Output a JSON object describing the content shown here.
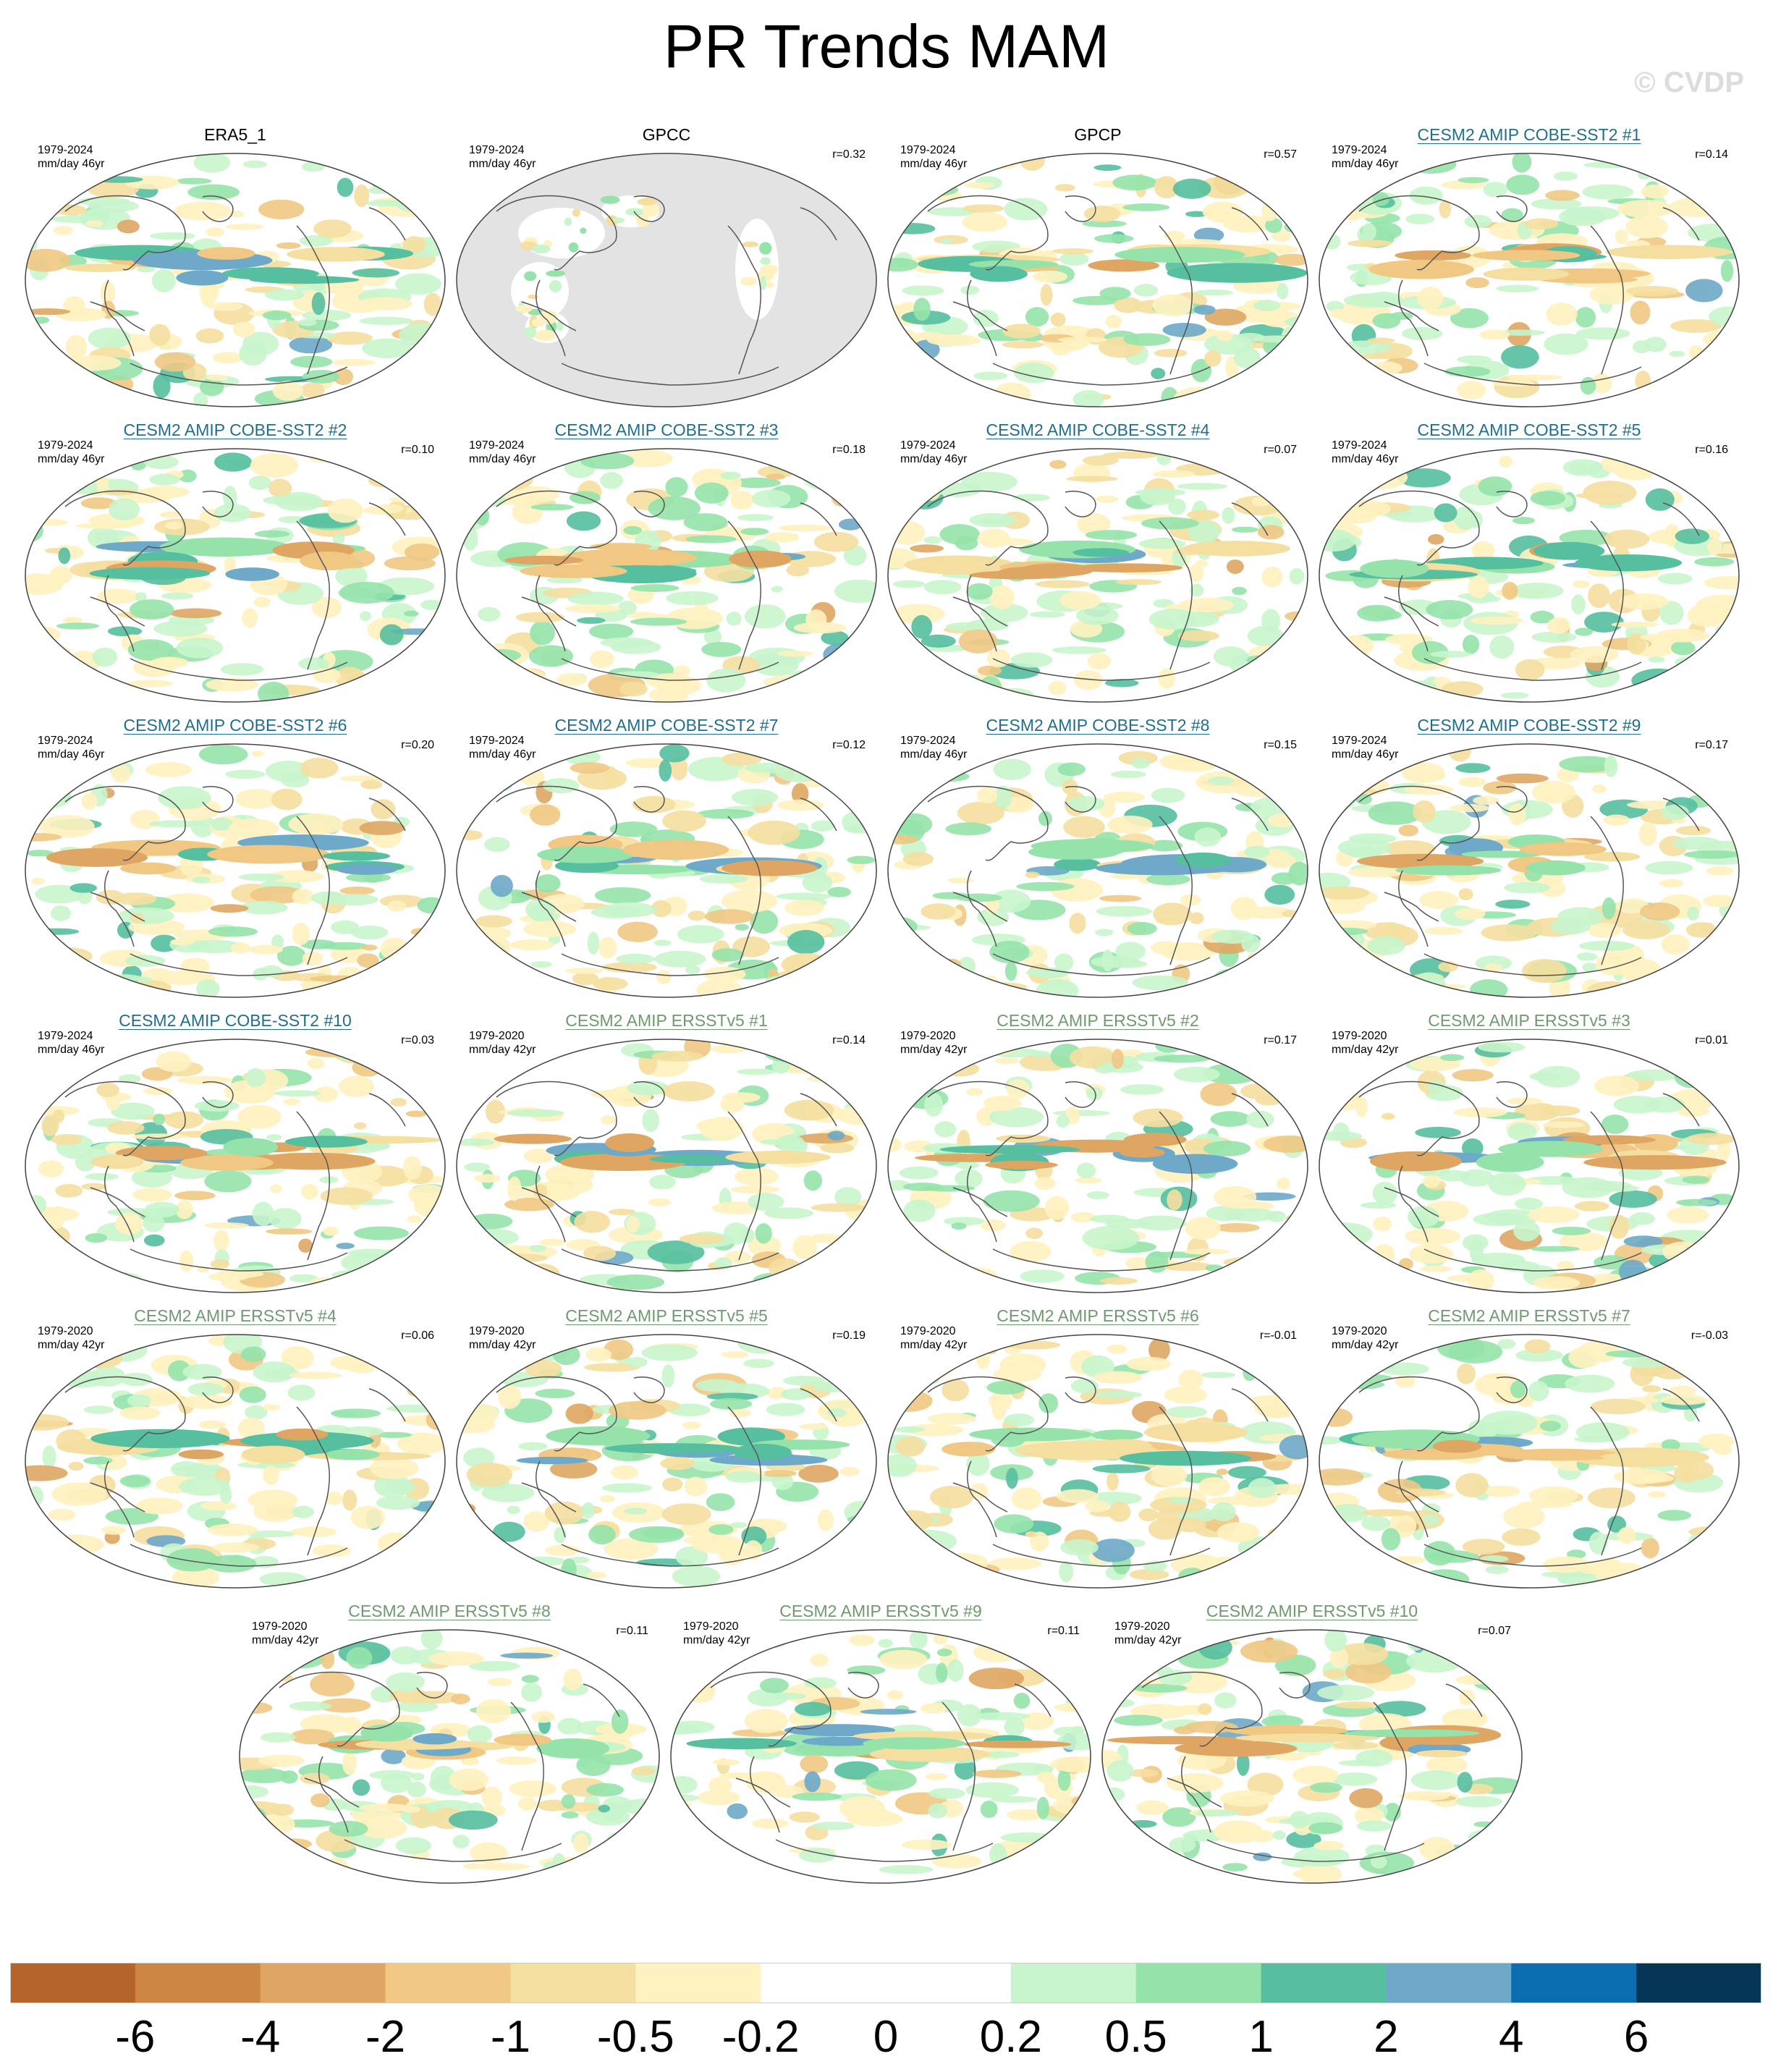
{
  "title": "PR Trends MAM",
  "watermark": "© CVDP",
  "colors": {
    "land_masked": "#e3e3e3",
    "coast": "#555555",
    "title_cobe": "#1f6e8f",
    "title_ersst": "#6f9a6f"
  },
  "panels": [
    {
      "label": "ERA5_1",
      "period": "1979-2024",
      "units": "mm/day 46yr",
      "r": "",
      "group": "obs"
    },
    {
      "label": "GPCC",
      "period": "1979-2024",
      "units": "mm/day 46yr",
      "r": "r=0.32",
      "group": "obs"
    },
    {
      "label": "GPCP",
      "period": "1979-2024",
      "units": "mm/day 46yr",
      "r": "r=0.57",
      "group": "obs"
    },
    {
      "label": "CESM2 AMIP COBE-SST2 #1",
      "period": "1979-2024",
      "units": "mm/day 46yr",
      "r": "r=0.14",
      "group": "cobe"
    },
    {
      "label": "CESM2 AMIP COBE-SST2 #2",
      "period": "1979-2024",
      "units": "mm/day 46yr",
      "r": "r=0.10",
      "group": "cobe"
    },
    {
      "label": "CESM2 AMIP COBE-SST2 #3",
      "period": "1979-2024",
      "units": "mm/day 46yr",
      "r": "r=0.18",
      "group": "cobe"
    },
    {
      "label": "CESM2 AMIP COBE-SST2 #4",
      "period": "1979-2024",
      "units": "mm/day 46yr",
      "r": "r=0.07",
      "group": "cobe"
    },
    {
      "label": "CESM2 AMIP COBE-SST2 #5",
      "period": "1979-2024",
      "units": "mm/day 46yr",
      "r": "r=0.16",
      "group": "cobe"
    },
    {
      "label": "CESM2 AMIP COBE-SST2 #6",
      "period": "1979-2024",
      "units": "mm/day 46yr",
      "r": "r=0.20",
      "group": "cobe"
    },
    {
      "label": "CESM2 AMIP COBE-SST2 #7",
      "period": "1979-2024",
      "units": "mm/day 46yr",
      "r": "r=0.12",
      "group": "cobe"
    },
    {
      "label": "CESM2 AMIP COBE-SST2 #8",
      "period": "1979-2024",
      "units": "mm/day 46yr",
      "r": "r=0.15",
      "group": "cobe"
    },
    {
      "label": "CESM2 AMIP COBE-SST2 #9",
      "period": "1979-2024",
      "units": "mm/day 46yr",
      "r": "r=0.17",
      "group": "cobe"
    },
    {
      "label": "CESM2 AMIP COBE-SST2 #10",
      "period": "1979-2024",
      "units": "mm/day 46yr",
      "r": "r=0.03",
      "group": "cobe"
    },
    {
      "label": "CESM2 AMIP ERSSTv5 #1",
      "period": "1979-2020",
      "units": "mm/day 42yr",
      "r": "r=0.14",
      "group": "ersst"
    },
    {
      "label": "CESM2 AMIP ERSSTv5 #2",
      "period": "1979-2020",
      "units": "mm/day 42yr",
      "r": "r=0.17",
      "group": "ersst"
    },
    {
      "label": "CESM2 AMIP ERSSTv5 #3",
      "period": "1979-2020",
      "units": "mm/day 42yr",
      "r": "r=0.01",
      "group": "ersst"
    },
    {
      "label": "CESM2 AMIP ERSSTv5 #4",
      "period": "1979-2020",
      "units": "mm/day 42yr",
      "r": "r=0.06",
      "group": "ersst"
    },
    {
      "label": "CESM2 AMIP ERSSTv5 #5",
      "period": "1979-2020",
      "units": "mm/day 42yr",
      "r": "r=0.19",
      "group": "ersst"
    },
    {
      "label": "CESM2 AMIP ERSSTv5 #6",
      "period": "1979-2020",
      "units": "mm/day 42yr",
      "r": "r=-0.01",
      "group": "ersst"
    },
    {
      "label": "CESM2 AMIP ERSSTv5 #7",
      "period": "1979-2020",
      "units": "mm/day 42yr",
      "r": "r=-0.03",
      "group": "ersst"
    },
    {
      "label": "CESM2 AMIP ERSSTv5 #8",
      "period": "1979-2020",
      "units": "mm/day 42yr",
      "r": "r=0.11",
      "group": "ersst"
    },
    {
      "label": "CESM2 AMIP ERSSTv5 #9",
      "period": "1979-2020",
      "units": "mm/day 42yr",
      "r": "r=0.11",
      "group": "ersst"
    },
    {
      "label": "CESM2 AMIP ERSSTv5 #10",
      "period": "1979-2020",
      "units": "mm/day 42yr",
      "r": "r=0.07",
      "group": "ersst"
    }
  ],
  "colorbar": {
    "labels": [
      "-6",
      "-4",
      "-2",
      "-1",
      "-0.5",
      "-0.2",
      "0",
      "0.2",
      "0.5",
      "1",
      "2",
      "4",
      "6"
    ],
    "colors": [
      "#b5652a",
      "#cd8745",
      "#dfa663",
      "#f0c884",
      "#f5dfa0",
      "#fff2c0",
      "#ffffff",
      "#ffffff",
      "#c8f5cc",
      "#95e3ab",
      "#55bf9f",
      "#6ea9c9",
      "#0a6eb0",
      "#053557"
    ]
  }
}
